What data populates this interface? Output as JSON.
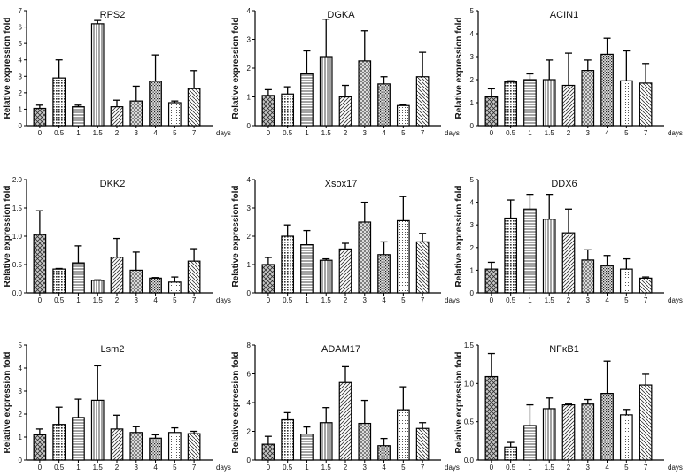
{
  "chart_data": [
    {
      "type": "bar",
      "title": "RPS2",
      "ylabel": "Relative expression fold",
      "xlabel": "days",
      "categories": [
        "0",
        "0.5",
        "1",
        "1.5",
        "2",
        "3",
        "4",
        "5",
        "7"
      ],
      "ylim": [
        0,
        7
      ],
      "yticks": [
        "0",
        "1",
        "2",
        "3",
        "4",
        "5",
        "6",
        "7"
      ],
      "values": [
        1.05,
        2.9,
        1.15,
        6.2,
        1.15,
        1.5,
        2.7,
        1.4,
        2.25
      ],
      "errors": [
        0.2,
        1.1,
        0.1,
        0.2,
        0.4,
        0.9,
        1.6,
        0.1,
        1.1
      ]
    },
    {
      "type": "bar",
      "title": "DGKA",
      "ylabel": "Relative expression fold",
      "xlabel": "days",
      "categories": [
        "0",
        "0.5",
        "1",
        "1.5",
        "2",
        "3",
        "4",
        "5",
        "7"
      ],
      "ylim": [
        0,
        4
      ],
      "yticks": [
        "0",
        "1",
        "2",
        "3",
        "4"
      ],
      "values": [
        1.05,
        1.1,
        1.8,
        2.4,
        1.0,
        2.25,
        1.45,
        0.7,
        1.7
      ],
      "errors": [
        0.2,
        0.25,
        0.8,
        1.3,
        0.4,
        1.05,
        0.25,
        0.02,
        0.85
      ]
    },
    {
      "type": "bar",
      "title": "ACIN1",
      "ylabel": "Relative expression fold",
      "xlabel": "days",
      "categories": [
        "0",
        "0.5",
        "1",
        "1.5",
        "2",
        "3",
        "4",
        "5",
        "7"
      ],
      "ylim": [
        0,
        5
      ],
      "yticks": [
        "0",
        "1",
        "2",
        "3",
        "4",
        "5"
      ],
      "values": [
        1.25,
        1.9,
        2.0,
        2.0,
        1.75,
        2.4,
        3.1,
        1.95,
        1.85
      ],
      "errors": [
        0.35,
        0.05,
        0.25,
        0.85,
        1.4,
        0.45,
        0.7,
        1.3,
        0.85
      ]
    },
    {
      "type": "bar",
      "title": "DKK2",
      "ylabel": "Relative expression fold",
      "xlabel": "days",
      "categories": [
        "0",
        "0.5",
        "1",
        "1.5",
        "2",
        "3",
        "4",
        "5",
        "7"
      ],
      "ylim": [
        0,
        2.0
      ],
      "yticks": [
        "0.0",
        "0.5",
        "1.0",
        "1.5",
        "2.0"
      ],
      "values": [
        1.03,
        0.42,
        0.53,
        0.22,
        0.63,
        0.4,
        0.26,
        0.19,
        0.56
      ],
      "errors": [
        0.42,
        0.01,
        0.3,
        0.01,
        0.33,
        0.32,
        0.01,
        0.09,
        0.22
      ]
    },
    {
      "type": "bar",
      "title": "Xsox17",
      "ylabel": "Relative expression fold",
      "xlabel": "days",
      "categories": [
        "0",
        "0.5",
        "1",
        "1.5",
        "2",
        "3",
        "4",
        "5",
        "7"
      ],
      "ylim": [
        0,
        4
      ],
      "yticks": [
        "0",
        "1",
        "2",
        "3",
        "4"
      ],
      "values": [
        1.0,
        2.0,
        1.7,
        1.15,
        1.55,
        2.5,
        1.35,
        2.55,
        1.8
      ],
      "errors": [
        0.25,
        0.4,
        0.5,
        0.05,
        0.2,
        0.7,
        0.45,
        0.85,
        0.3
      ]
    },
    {
      "type": "bar",
      "title": "DDX6",
      "ylabel": "Relative expression fold",
      "xlabel": "days",
      "categories": [
        "0",
        "0.5",
        "1",
        "1.5",
        "2",
        "3",
        "4",
        "5",
        "7"
      ],
      "ylim": [
        0,
        5
      ],
      "yticks": [
        "0",
        "1",
        "2",
        "3",
        "4",
        "5"
      ],
      "values": [
        1.05,
        3.3,
        3.7,
        3.25,
        2.65,
        1.45,
        1.2,
        1.05,
        0.65
      ],
      "errors": [
        0.3,
        0.8,
        0.65,
        1.1,
        1.05,
        0.45,
        0.45,
        0.45,
        0.05
      ]
    },
    {
      "type": "bar",
      "title": "Lsm2",
      "ylabel": "Relative expression fold",
      "xlabel": "days",
      "categories": [
        "0",
        "0.5",
        "1",
        "1.5",
        "2",
        "3",
        "4",
        "5",
        "7"
      ],
      "ylim": [
        0,
        5
      ],
      "yticks": [
        "0",
        "1",
        "2",
        "3",
        "4",
        "5"
      ],
      "values": [
        1.1,
        1.55,
        1.85,
        2.6,
        1.35,
        1.2,
        0.95,
        1.2,
        1.15
      ],
      "errors": [
        0.25,
        0.75,
        0.8,
        1.5,
        0.6,
        0.25,
        0.15,
        0.2,
        0.1
      ]
    },
    {
      "type": "bar",
      "title": "ADAM17",
      "ylabel": "Relative expression fold",
      "xlabel": "days",
      "categories": [
        "0",
        "0.5",
        "1",
        "1.5",
        "2",
        "3",
        "4",
        "5",
        "7"
      ],
      "ylim": [
        0,
        8
      ],
      "yticks": [
        "0",
        "2",
        "4",
        "6",
        "8"
      ],
      "values": [
        1.1,
        2.8,
        1.8,
        2.6,
        5.4,
        2.55,
        1.0,
        3.5,
        2.2
      ],
      "errors": [
        0.55,
        0.5,
        0.5,
        1.05,
        1.1,
        1.6,
        0.5,
        1.6,
        0.4
      ]
    },
    {
      "type": "bar",
      "title": "NFκB1",
      "ylabel": "Relative expression fold",
      "xlabel": "days",
      "categories": [
        "0",
        "0.5",
        "1",
        "1.5",
        "2",
        "3",
        "4",
        "5",
        "7"
      ],
      "ylim": [
        0,
        1.5
      ],
      "yticks": [
        "0.0",
        "0.5",
        "1.0",
        "1.5"
      ],
      "values": [
        1.09,
        0.17,
        0.45,
        0.67,
        0.72,
        0.73,
        0.87,
        0.59,
        0.98
      ],
      "errors": [
        0.3,
        0.06,
        0.27,
        0.14,
        0.01,
        0.06,
        0.42,
        0.07,
        0.14
      ]
    }
  ]
}
